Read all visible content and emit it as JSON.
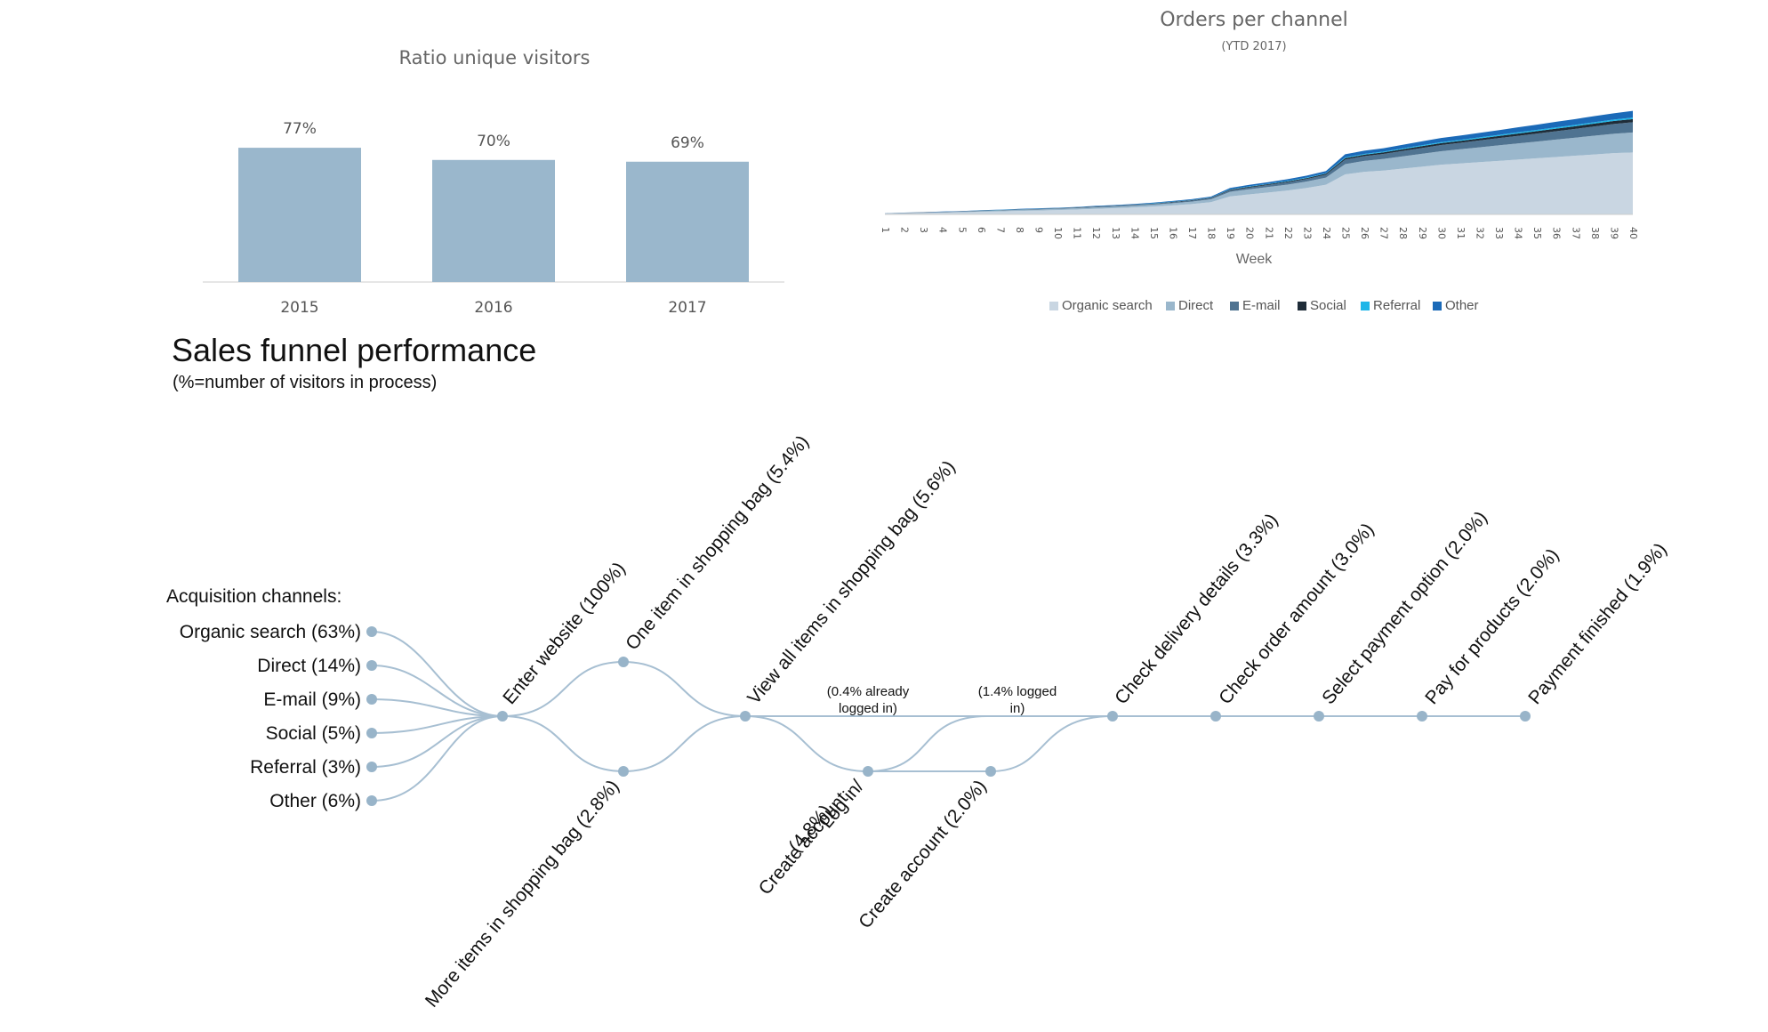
{
  "chart_data": [
    {
      "type": "bar",
      "title": "Ratio unique visitors",
      "categories": [
        "2015",
        "2016",
        "2017"
      ],
      "values": [
        77,
        70,
        69
      ],
      "value_labels": [
        "77%",
        "70%",
        "69%"
      ],
      "ylim": [
        0,
        100
      ],
      "grid": false,
      "colors": {
        "bar": "#9ab7cc",
        "axis": "#cccccc"
      }
    },
    {
      "type": "area",
      "title": "Orders per channel",
      "subtitle": "(YTD 2017)",
      "xlabel": "Week",
      "x": [
        1,
        2,
        3,
        4,
        5,
        6,
        7,
        8,
        9,
        10,
        11,
        12,
        13,
        14,
        15,
        16,
        17,
        18,
        19,
        20,
        21,
        22,
        23,
        24,
        25,
        26,
        27,
        28,
        29,
        30,
        31,
        32,
        33,
        34,
        35,
        36,
        37,
        38,
        39,
        40
      ],
      "stacked": true,
      "ylim": [
        0,
        100
      ],
      "grid": false,
      "legend_placement": "bottom",
      "series": [
        {
          "name": "Organic search",
          "color": "#c9d6e2",
          "values": [
            0.5,
            0.8,
            1,
            1.3,
            1.6,
            2,
            2.3,
            2.7,
            3,
            3.4,
            3.8,
            4.3,
            4.8,
            5.4,
            6.1,
            7,
            8,
            9.5,
            14,
            15.5,
            17,
            18.5,
            20.5,
            23,
            31,
            33,
            34,
            35.5,
            37,
            38.5,
            39.5,
            40.5,
            41.5,
            42.5,
            43.5,
            44.5,
            45.5,
            46.5,
            47.5,
            48
          ]
        },
        {
          "name": "Direct",
          "color": "#9ab7cc",
          "values": [
            0.2,
            0.3,
            0.3,
            0.4,
            0.5,
            0.6,
            0.7,
            0.8,
            0.8,
            0.9,
            1,
            1.1,
            1.2,
            1.4,
            1.5,
            1.7,
            1.9,
            2.2,
            3.5,
            4,
            4.3,
            4.6,
            5,
            5.5,
            8,
            8.5,
            9,
            9.5,
            10,
            10.5,
            11,
            11.5,
            12,
            12.5,
            13,
            13.5,
            14,
            14.5,
            15,
            15.5
          ]
        },
        {
          "name": "E-mail",
          "color": "#4f7391",
          "values": [
            0.1,
            0.1,
            0.2,
            0.2,
            0.2,
            0.3,
            0.3,
            0.3,
            0.4,
            0.4,
            0.4,
            0.5,
            0.5,
            0.6,
            0.6,
            0.7,
            0.8,
            0.9,
            1.2,
            1.4,
            1.6,
            1.8,
            2,
            2.3,
            3.5,
            3.7,
            3.9,
            4.2,
            4.5,
            4.8,
            5,
            5.3,
            5.6,
            5.9,
            6.2,
            6.5,
            6.8,
            7.2,
            7.6,
            8
          ]
        },
        {
          "name": "Social",
          "color": "#1f2c38",
          "values": [
            0,
            0.1,
            0.1,
            0.1,
            0.1,
            0.1,
            0.1,
            0.1,
            0.1,
            0.1,
            0.2,
            0.2,
            0.2,
            0.2,
            0.2,
            0.3,
            0.3,
            0.3,
            0.5,
            0.6,
            0.6,
            0.7,
            0.7,
            0.8,
            1.1,
            1.1,
            1.2,
            1.3,
            1.4,
            1.5,
            1.5,
            1.6,
            1.7,
            1.8,
            1.9,
            2,
            2.1,
            2.2,
            2.3,
            2.4
          ]
        },
        {
          "name": "Referral",
          "color": "#1fb6e8",
          "values": [
            0,
            0,
            0,
            0,
            0,
            0.1,
            0.1,
            0.1,
            0.1,
            0.1,
            0.1,
            0.1,
            0.1,
            0.1,
            0.2,
            0.2,
            0.2,
            0.2,
            0.3,
            0.3,
            0.3,
            0.4,
            0.4,
            0.4,
            0.6,
            0.6,
            0.6,
            0.7,
            0.7,
            0.7,
            0.8,
            0.8,
            0.8,
            0.9,
            0.9,
            1,
            1,
            1.1,
            1.1,
            1.2
          ]
        },
        {
          "name": "Other",
          "color": "#1b6ab8",
          "values": [
            0.1,
            0.1,
            0.1,
            0.2,
            0.2,
            0.2,
            0.2,
            0.3,
            0.3,
            0.3,
            0.3,
            0.4,
            0.4,
            0.4,
            0.5,
            0.5,
            0.6,
            0.7,
            1,
            1.1,
            1.2,
            1.3,
            1.5,
            1.6,
            2.4,
            2.5,
            2.6,
            2.8,
            3,
            3.2,
            3.3,
            3.5,
            3.7,
            3.9,
            4.1,
            4.3,
            4.5,
            4.7,
            4.9,
            5.2
          ]
        }
      ]
    },
    {
      "type": "diagram",
      "title": "Sales funnel performance",
      "subtitle": "(%=number of visitors in process)",
      "channels_heading": "Acquisition channels:",
      "channels": [
        "Organic search (63%)",
        "Direct (14%)",
        "E-mail (9%)",
        "Social (5%)",
        "Referral (3%)",
        "Other (6%)"
      ],
      "steps": [
        {
          "key": "enter",
          "label": "Enter website (100%)"
        },
        {
          "key": "one_item",
          "label": "One item in shopping bag (5.4%)"
        },
        {
          "key": "more_items",
          "label": "More items in shopping bag (2.8%)"
        },
        {
          "key": "view_all",
          "label": "View all items in shopping bag (5.6%)"
        },
        {
          "key": "login",
          "label_lines": [
            "Log in/",
            "Create account",
            "(4.8%)"
          ]
        },
        {
          "key": "create",
          "label": "Create account (2.0%)"
        },
        {
          "key": "delivery",
          "label": "Check delivery details (3.3%)"
        },
        {
          "key": "amount",
          "label": "Check order amount (3.0%)"
        },
        {
          "key": "payment_option",
          "label": "Select payment option (2.0%)"
        },
        {
          "key": "pay",
          "label": "Pay for products (2.0%)"
        },
        {
          "key": "finished",
          "label": "Payment finished (1.9%)"
        }
      ],
      "notes": [
        {
          "key": "already_logged",
          "lines": [
            "(0.4% already",
            "logged in)"
          ]
        },
        {
          "key": "logged",
          "lines": [
            "(1.4% logged",
            "in)"
          ]
        }
      ],
      "colors": {
        "line": "#a7bfd2",
        "node": "#98b4c9",
        "text": "#111111"
      }
    }
  ]
}
